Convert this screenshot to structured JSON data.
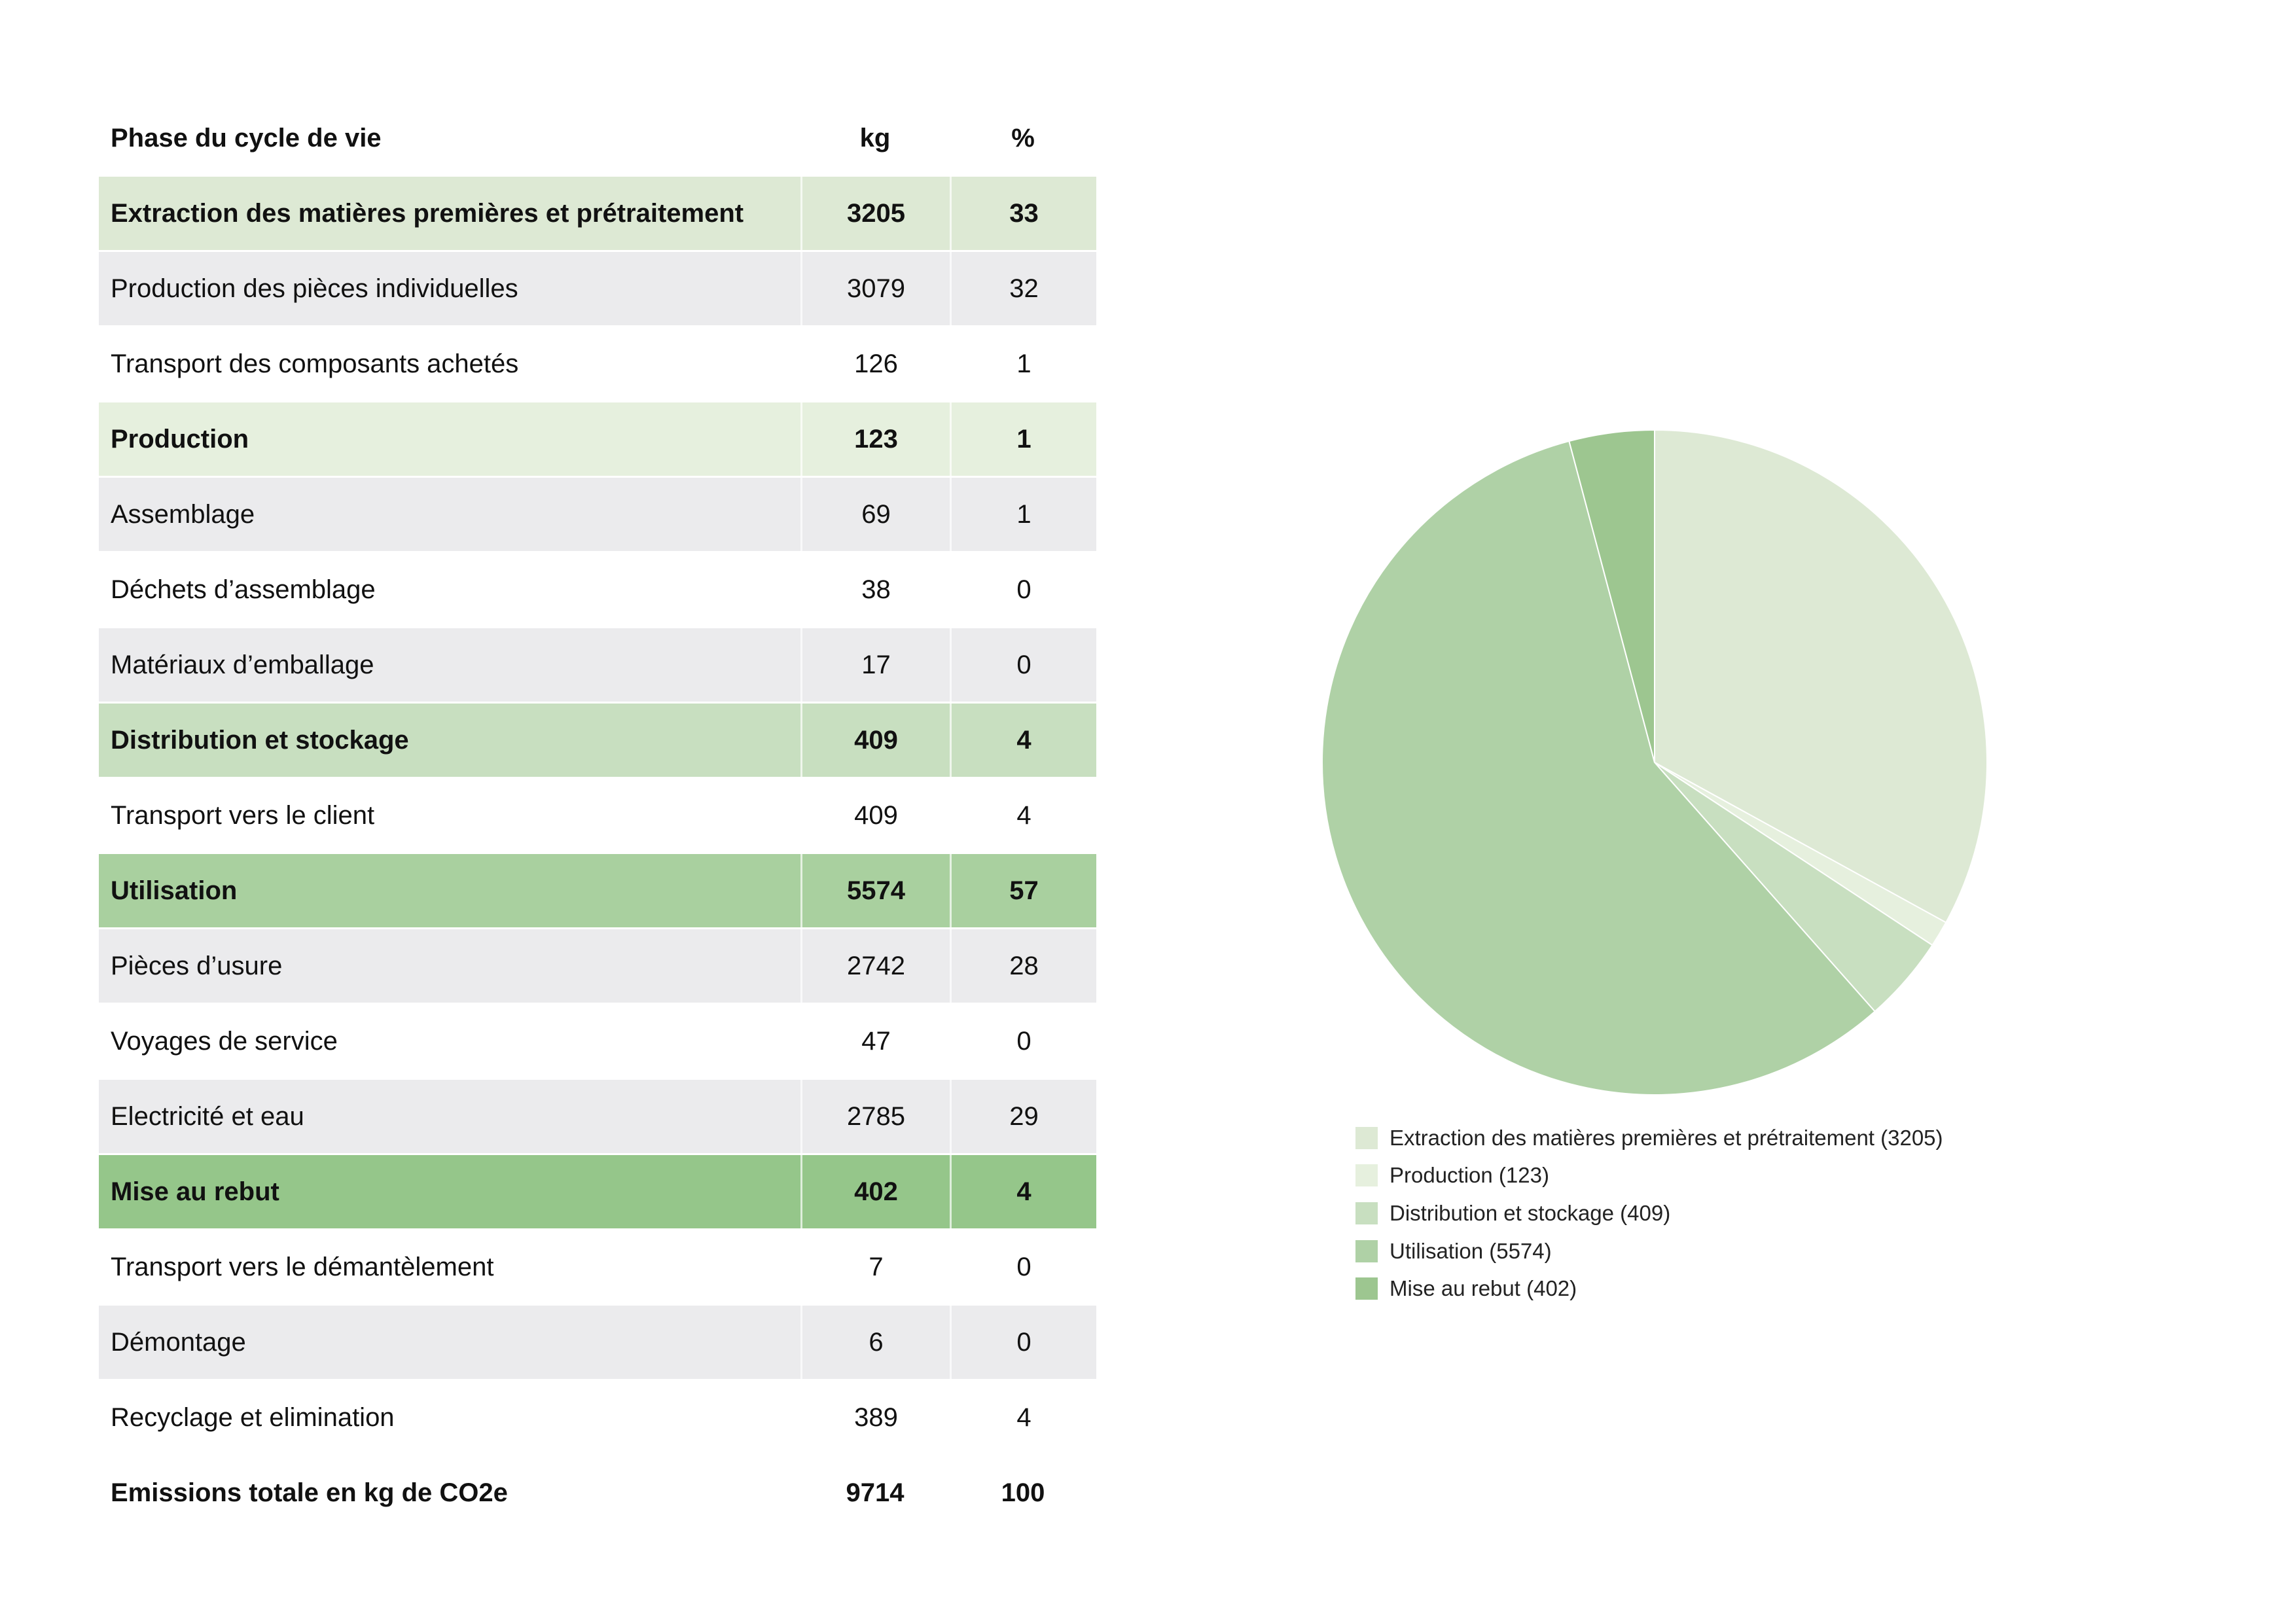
{
  "table": {
    "headers": [
      "Phase du cycle de vie",
      "kg",
      "%"
    ],
    "rows": [
      {
        "label": "Extraction des matières premières et prétraitement",
        "kg": "3205",
        "pct": "33",
        "phase": true,
        "color": "#dde9d4"
      },
      {
        "label": "Production des pièces individuelles",
        "kg": "3079",
        "pct": "32",
        "phase": false,
        "color": "#ebebed"
      },
      {
        "label": "Transport des composants achetés",
        "kg": "126",
        "pct": "1",
        "phase": false,
        "color": "#ffffff"
      },
      {
        "label": "Production",
        "kg": "123",
        "pct": "1",
        "phase": true,
        "color": "#e6f0de"
      },
      {
        "label": "Assemblage",
        "kg": "69",
        "pct": "1",
        "phase": false,
        "color": "#ebebed"
      },
      {
        "label": "Déchets d’assemblage",
        "kg": "38",
        "pct": "0",
        "phase": false,
        "color": "#ffffff"
      },
      {
        "label": "Matériaux d’emballage",
        "kg": "17",
        "pct": "0",
        "phase": false,
        "color": "#ebebed"
      },
      {
        "label": "Distribution et stockage",
        "kg": "409",
        "pct": "4",
        "phase": true,
        "color": "#c8dfc0"
      },
      {
        "label": "Transport vers le client",
        "kg": "409",
        "pct": "4",
        "phase": false,
        "color": "#ffffff"
      },
      {
        "label": "Utilisation",
        "kg": "5574",
        "pct": "57",
        "phase": true,
        "color": "#a9d09f"
      },
      {
        "label": "Pièces d’usure",
        "kg": "2742",
        "pct": "28",
        "phase": false,
        "color": "#ebebed"
      },
      {
        "label": "Voyages de service",
        "kg": "47",
        "pct": "0",
        "phase": false,
        "color": "#ffffff"
      },
      {
        "label": "Electricité et eau",
        "kg": "2785",
        "pct": "29",
        "phase": false,
        "color": "#ebebed"
      },
      {
        "label": "Mise au rebut",
        "kg": "402",
        "pct": "4",
        "phase": true,
        "color": "#95c68a"
      },
      {
        "label": "Transport vers le démantèlement",
        "kg": "7",
        "pct": "0",
        "phase": false,
        "color": "#ffffff"
      },
      {
        "label": "Démontage",
        "kg": "6",
        "pct": "0",
        "phase": false,
        "color": "#ebebed"
      },
      {
        "label": "Recyclage et elimination",
        "kg": "389",
        "pct": "4",
        "phase": false,
        "color": "#ffffff"
      }
    ],
    "total": {
      "label": "Emissions totale en kg de CO2e",
      "kg": "9714",
      "pct": "100"
    }
  },
  "chart_data": {
    "type": "pie",
    "start": "top",
    "direction": "clockwise",
    "legend_position": "bottom-left",
    "slices": [
      {
        "label": "Extraction des matières premières et prétraitement (3205)",
        "value": 3205,
        "color": "#dde9d4"
      },
      {
        "label": "Production (123)",
        "value": 123,
        "color": "#e6f0de"
      },
      {
        "label": "Distribution et stockage (409)",
        "value": 409,
        "color": "#c8dfc0"
      },
      {
        "label": "Utilisation (5574)",
        "value": 5574,
        "color": "#afd1a6"
      },
      {
        "label": "Mise au rebut (402)",
        "value": 402,
        "color": "#9dc690"
      }
    ]
  }
}
